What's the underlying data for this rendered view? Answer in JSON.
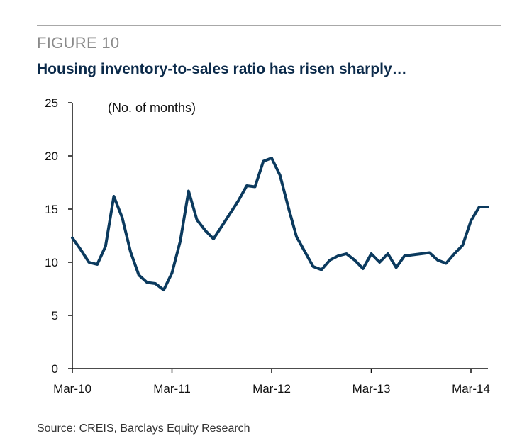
{
  "figure": {
    "label": "FIGURE 10",
    "title": "Housing inventory-to-sales ratio has risen sharply…",
    "source": "Source: CREIS, Barclays Equity Research"
  },
  "chart_data": {
    "type": "line",
    "title": "Housing inventory-to-sales ratio has risen sharply…",
    "ylabel": "(No. of months)",
    "xlabel": "",
    "ylim": [
      0,
      25
    ],
    "yticks": [
      0,
      5,
      10,
      15,
      20,
      25
    ],
    "xtick_labels": [
      "Mar-10",
      "Mar-11",
      "Mar-12",
      "Mar-13",
      "Mar-14"
    ],
    "xlim": [
      "2010-03",
      "2014-05"
    ],
    "grid": false,
    "line_color": "#0b3a5e",
    "series": [
      {
        "x": [
          "2010-03",
          "2010-04",
          "2010-05",
          "2010-06",
          "2010-07",
          "2010-08",
          "2010-09",
          "2010-10",
          "2010-11",
          "2010-12",
          "2011-01",
          "2011-02",
          "2011-03",
          "2011-04",
          "2011-05",
          "2011-06",
          "2011-07",
          "2011-08",
          "2011-09",
          "2011-10",
          "2011-11",
          "2011-12",
          "2012-01",
          "2012-02",
          "2012-03",
          "2012-04",
          "2012-05",
          "2012-06",
          "2012-07",
          "2012-08",
          "2012-09",
          "2012-10",
          "2012-11",
          "2012-12",
          "2013-01",
          "2013-02",
          "2013-03",
          "2013-04",
          "2013-05",
          "2013-06",
          "2013-07",
          "2013-08",
          "2013-09",
          "2013-10",
          "2013-11",
          "2013-12",
          "2014-01",
          "2014-02",
          "2014-03",
          "2014-04",
          "2014-05"
        ],
        "values": [
          12.3,
          11.2,
          10.0,
          9.8,
          11.5,
          16.2,
          14.2,
          11.0,
          8.8,
          8.1,
          8.0,
          7.4,
          9.0,
          12.0,
          16.7,
          14.0,
          13.0,
          12.2,
          13.4,
          14.6,
          15.8,
          17.2,
          17.1,
          19.5,
          19.8,
          18.2,
          15.2,
          12.4,
          11.0,
          9.6,
          9.3,
          10.2,
          10.6,
          10.8,
          10.2,
          9.4,
          10.8,
          10.0,
          10.8,
          9.5,
          10.6,
          10.7,
          10.8,
          10.9,
          10.2,
          9.9,
          10.8,
          11.6,
          13.9,
          15.2,
          15.2
        ]
      }
    ]
  }
}
